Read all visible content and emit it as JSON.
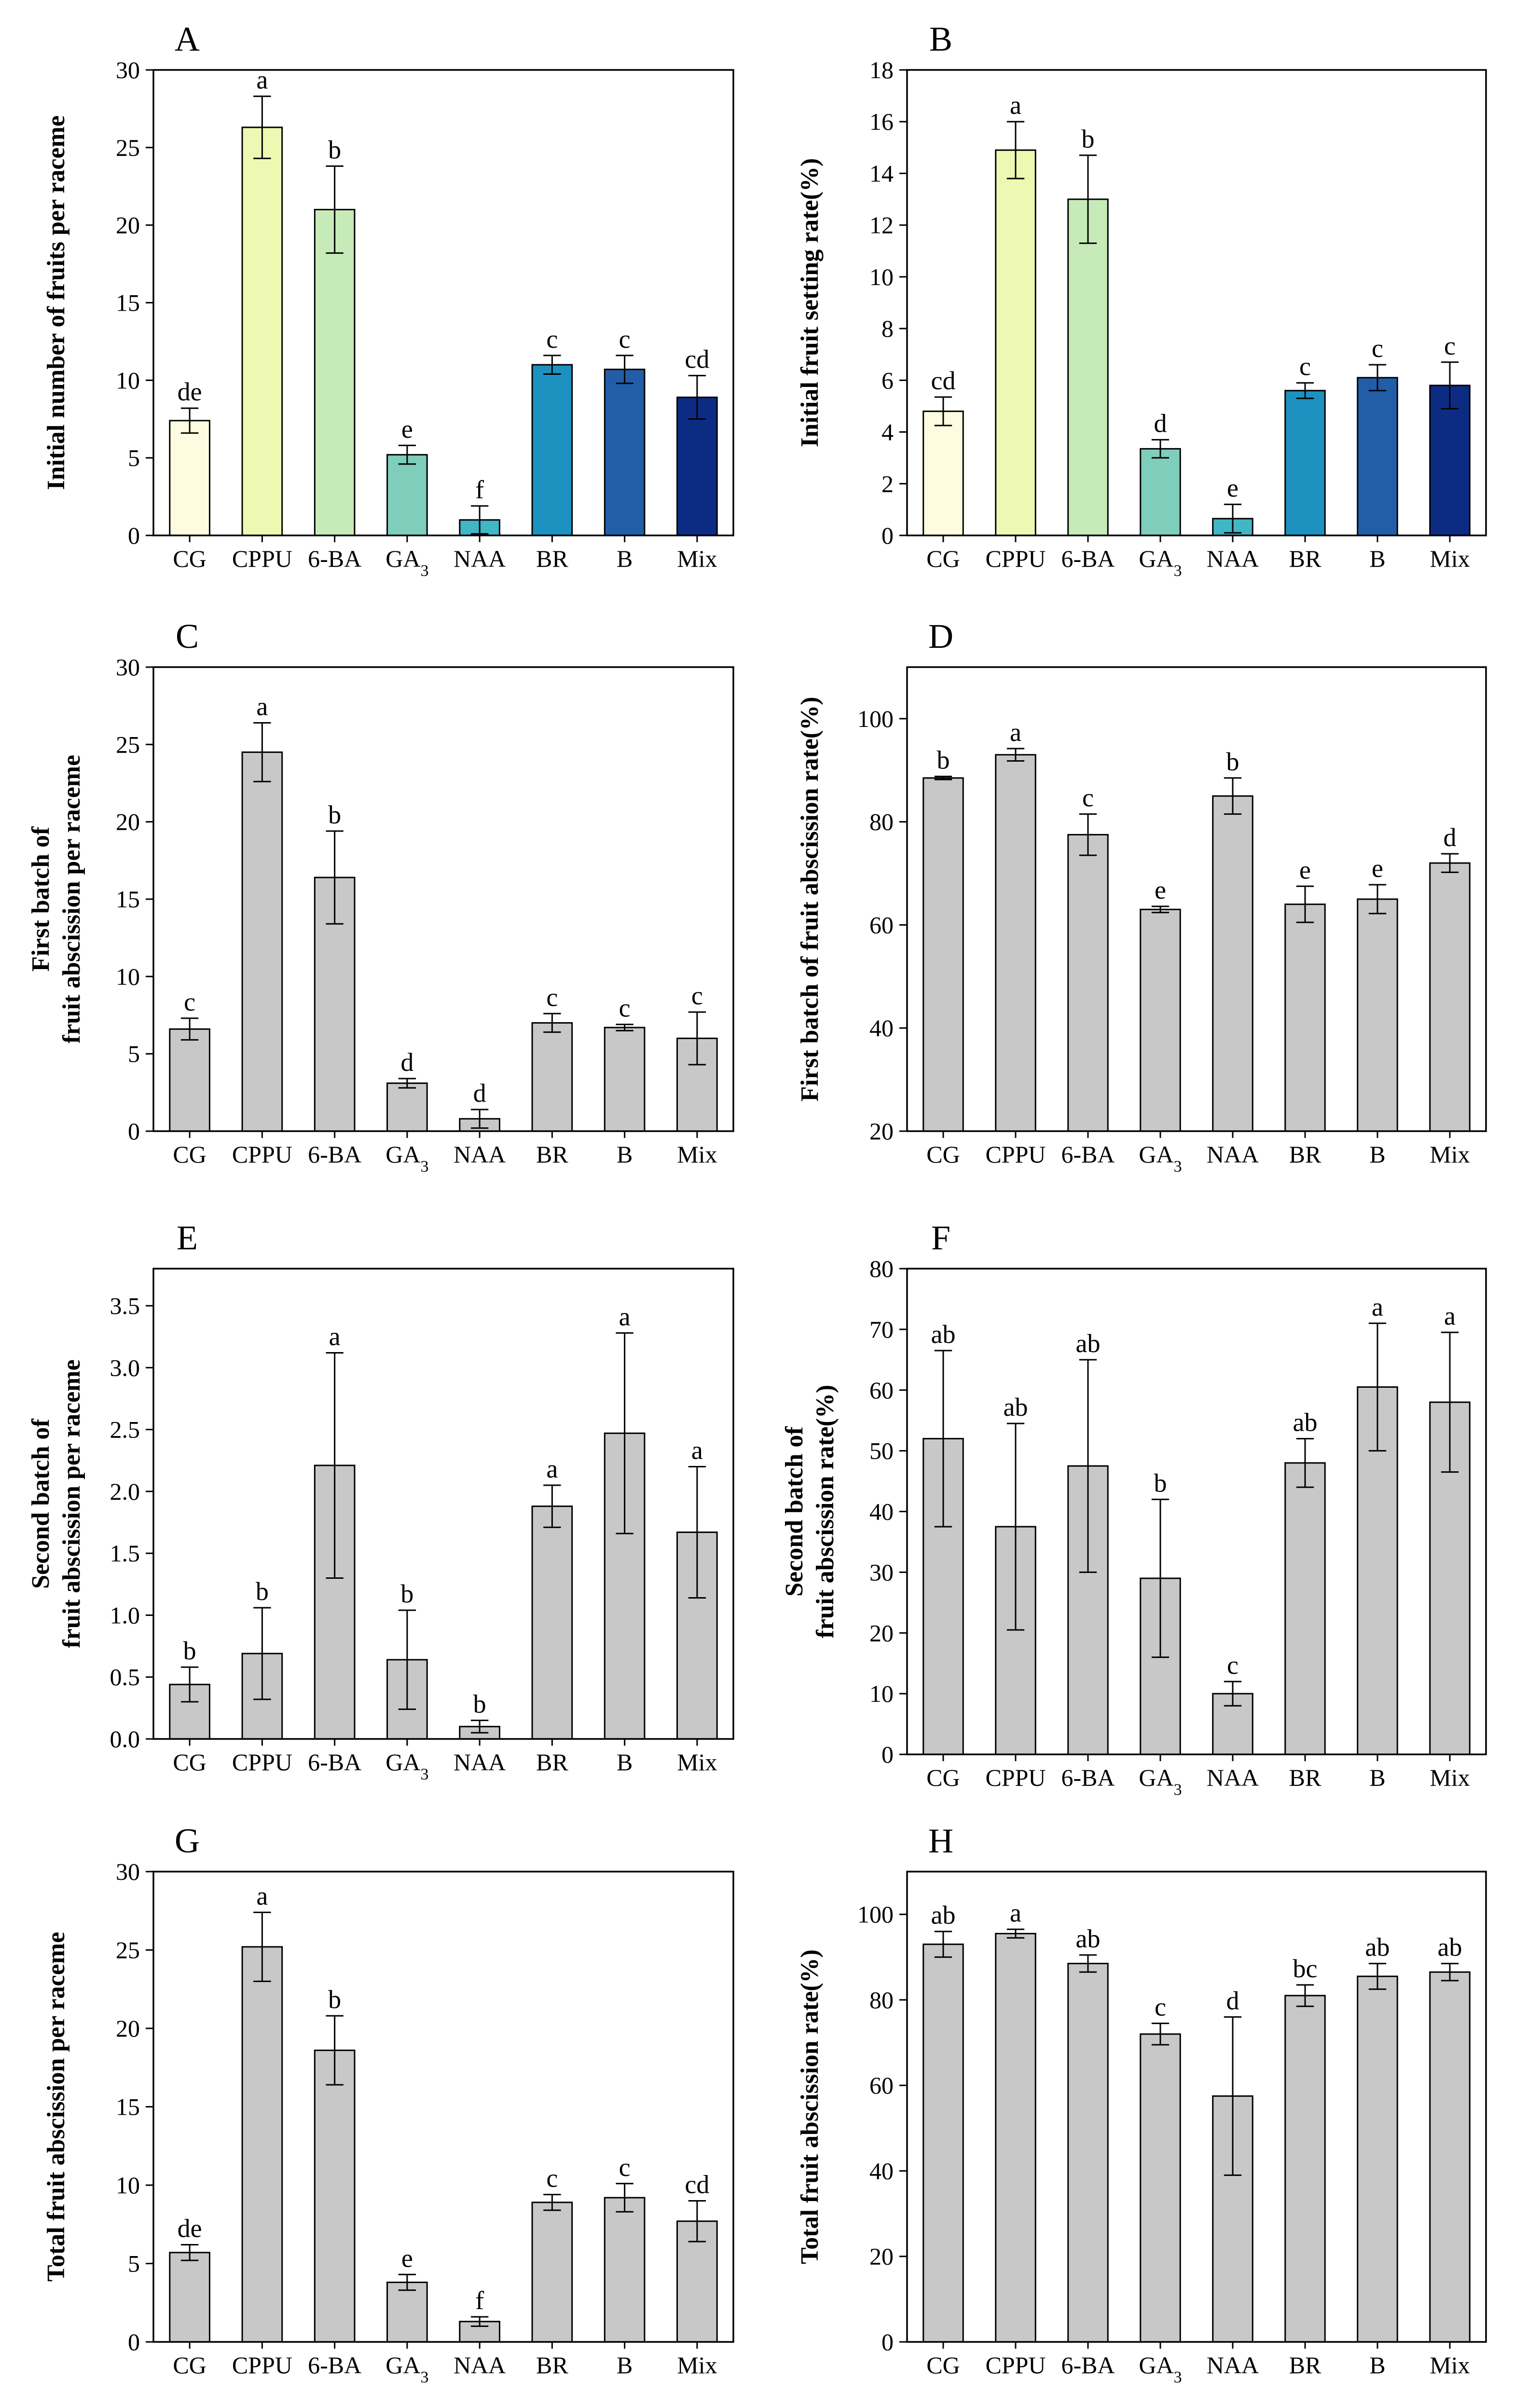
{
  "chart_data": [
    {
      "id": "A",
      "panel": "A",
      "type": "bar",
      "categories": [
        "CG",
        "CPPU",
        "6-BA",
        "GA3",
        "NAA",
        "BR",
        "B",
        "Mix"
      ],
      "values": [
        7.4,
        26.3,
        21.0,
        5.2,
        1.0,
        11.0,
        10.7,
        8.9
      ],
      "errors": [
        0.8,
        2.0,
        2.8,
        0.6,
        0.9,
        0.6,
        0.9,
        1.4
      ],
      "letters": [
        "de",
        "a",
        "b",
        "e",
        "f",
        "c",
        "c",
        "cd"
      ],
      "colors": [
        "#FDFCE0",
        "#EDF8B2",
        "#C7EAB9",
        "#7FCDBB",
        "#41B6C4",
        "#1D91C0",
        "#225EA8",
        "#0C2C84"
      ],
      "ylabel": [
        "Initial number of fruits per raceme"
      ],
      "ylim": [
        0,
        30
      ],
      "yticks": [
        0,
        5,
        10,
        15,
        20,
        25,
        30
      ],
      "decimals": 0
    },
    {
      "id": "B",
      "panel": "B",
      "type": "bar",
      "categories": [
        "CG",
        "CPPU",
        "6-BA",
        "GA3",
        "NAA",
        "BR",
        "B",
        "Mix"
      ],
      "values": [
        4.8,
        14.9,
        13.0,
        3.35,
        0.65,
        5.6,
        6.1,
        5.8
      ],
      "errors": [
        0.55,
        1.1,
        1.7,
        0.35,
        0.55,
        0.3,
        0.5,
        0.9
      ],
      "letters": [
        "cd",
        "a",
        "b",
        "d",
        "e",
        "c",
        "c",
        "c"
      ],
      "colors": [
        "#FDFCE0",
        "#EDF8B2",
        "#C7EAB9",
        "#7FCDBB",
        "#41B6C4",
        "#1D91C0",
        "#225EA8",
        "#0C2C84"
      ],
      "ylabel": [
        "Initial fruit setting rate(%)"
      ],
      "ylim": [
        0,
        18
      ],
      "yticks": [
        0,
        2,
        4,
        6,
        8,
        10,
        12,
        14,
        16,
        18
      ],
      "decimals": 0
    },
    {
      "id": "C",
      "panel": "C",
      "type": "bar",
      "categories": [
        "CG",
        "CPPU",
        "6-BA",
        "GA3",
        "NAA",
        "BR",
        "B",
        "Mix"
      ],
      "values": [
        6.6,
        24.5,
        16.4,
        3.1,
        0.8,
        7.0,
        6.7,
        6.0
      ],
      "errors": [
        0.7,
        1.9,
        3.0,
        0.3,
        0.6,
        0.6,
        0.2,
        1.7
      ],
      "letters": [
        "c",
        "a",
        "b",
        "d",
        "d",
        "c",
        "c",
        "c"
      ],
      "colors": [
        "#C8C8C8",
        "#C8C8C8",
        "#C8C8C8",
        "#C8C8C8",
        "#C8C8C8",
        "#C8C8C8",
        "#C8C8C8",
        "#C8C8C8"
      ],
      "ylabel": [
        "First batch of",
        "fruit abscission per raceme"
      ],
      "ylim": [
        0,
        30
      ],
      "yticks": [
        0,
        5,
        10,
        15,
        20,
        25,
        30
      ],
      "decimals": 0
    },
    {
      "id": "D",
      "panel": "D",
      "type": "bar",
      "categories": [
        "CG",
        "CPPU",
        "6-BA",
        "GA3",
        "NAA",
        "BR",
        "B",
        "Mix"
      ],
      "values": [
        88.5,
        93.0,
        77.5,
        63.0,
        85.0,
        64.0,
        65.0,
        72.0
      ],
      "errors": [
        0.3,
        1.2,
        4.0,
        0.6,
        3.5,
        3.5,
        2.8,
        1.8
      ],
      "letters": [
        "b",
        "a",
        "c",
        "e",
        "b",
        "e",
        "e",
        "d"
      ],
      "colors": [
        "#C8C8C8",
        "#C8C8C8",
        "#C8C8C8",
        "#C8C8C8",
        "#C8C8C8",
        "#C8C8C8",
        "#C8C8C8",
        "#C8C8C8"
      ],
      "ylabel": [
        "First batch of fruit abscission rate(%)"
      ],
      "ylim": [
        20,
        110
      ],
      "yticks": [
        20,
        40,
        60,
        80,
        100
      ],
      "decimals": 0
    },
    {
      "id": "E",
      "panel": "E",
      "type": "bar",
      "categories": [
        "CG",
        "CPPU",
        "6-BA",
        "GA3",
        "NAA",
        "BR",
        "B",
        "Mix"
      ],
      "values": [
        0.44,
        0.69,
        2.21,
        0.64,
        0.1,
        1.88,
        2.47,
        1.67
      ],
      "errors": [
        0.14,
        0.37,
        0.91,
        0.4,
        0.05,
        0.17,
        0.81,
        0.53
      ],
      "letters": [
        "b",
        "b",
        "a",
        "b",
        "b",
        "a",
        "a",
        "a"
      ],
      "colors": [
        "#C8C8C8",
        "#C8C8C8",
        "#C8C8C8",
        "#C8C8C8",
        "#C8C8C8",
        "#C8C8C8",
        "#C8C8C8",
        "#C8C8C8"
      ],
      "ylabel": [
        "Second batch of",
        "fruit abscission per raceme"
      ],
      "ylim": [
        0,
        3.8
      ],
      "yticks": [
        0,
        0.5,
        1,
        1.5,
        2,
        2.5,
        3,
        3.5
      ],
      "decimals": 1
    },
    {
      "id": "F",
      "panel": "F",
      "type": "bar",
      "categories": [
        "CG",
        "CPPU",
        "6-BA",
        "GA3",
        "NAA",
        "BR",
        "B",
        "Mix"
      ],
      "values": [
        52.0,
        37.5,
        47.5,
        29.0,
        10.0,
        48.0,
        60.5,
        58.0
      ],
      "errors": [
        14.5,
        17.0,
        17.5,
        13.0,
        2.0,
        4.0,
        10.5,
        11.5
      ],
      "letters": [
        "ab",
        "ab",
        "ab",
        "b",
        "c",
        "ab",
        "a",
        "a"
      ],
      "colors": [
        "#C8C8C8",
        "#C8C8C8",
        "#C8C8C8",
        "#C8C8C8",
        "#C8C8C8",
        "#C8C8C8",
        "#C8C8C8",
        "#C8C8C8"
      ],
      "ylabel": [
        "Second batch of",
        "fruit abscission rate(%)"
      ],
      "ylim": [
        0,
        80
      ],
      "yticks": [
        0,
        10,
        20,
        30,
        40,
        50,
        60,
        70,
        80
      ],
      "decimals": 0
    },
    {
      "id": "G",
      "panel": "G",
      "type": "bar",
      "categories": [
        "CG",
        "CPPU",
        "6-BA",
        "GA3",
        "NAA",
        "BR",
        "B",
        "Mix"
      ],
      "values": [
        5.7,
        25.2,
        18.6,
        3.8,
        1.3,
        8.9,
        9.2,
        7.7
      ],
      "errors": [
        0.5,
        2.2,
        2.2,
        0.5,
        0.3,
        0.5,
        0.9,
        1.3
      ],
      "letters": [
        "de",
        "a",
        "b",
        "e",
        "f",
        "c",
        "c",
        "cd"
      ],
      "colors": [
        "#C8C8C8",
        "#C8C8C8",
        "#C8C8C8",
        "#C8C8C8",
        "#C8C8C8",
        "#C8C8C8",
        "#C8C8C8",
        "#C8C8C8"
      ],
      "ylabel": [
        "Total fruit abscission per raceme"
      ],
      "ylim": [
        0,
        30
      ],
      "yticks": [
        0,
        5,
        10,
        15,
        20,
        25,
        30
      ],
      "decimals": 0
    },
    {
      "id": "H",
      "panel": "H",
      "type": "bar",
      "categories": [
        "CG",
        "CPPU",
        "6-BA",
        "GA3",
        "NAA",
        "BR",
        "B",
        "Mix"
      ],
      "values": [
        93.0,
        95.5,
        88.5,
        72.0,
        57.5,
        81.0,
        85.5,
        86.5
      ],
      "errors": [
        3.0,
        1.0,
        2.0,
        2.5,
        18.5,
        2.5,
        3.0,
        2.0
      ],
      "letters": [
        "ab",
        "a",
        "ab",
        "c",
        "d",
        "bc",
        "ab",
        "ab"
      ],
      "colors": [
        "#C8C8C8",
        "#C8C8C8",
        "#C8C8C8",
        "#C8C8C8",
        "#C8C8C8",
        "#C8C8C8",
        "#C8C8C8",
        "#C8C8C8"
      ],
      "ylabel": [
        "Total fruit abscission rate(%)"
      ],
      "ylim": [
        0,
        110
      ],
      "yticks": [
        0,
        20,
        40,
        60,
        80,
        100
      ],
      "decimals": 0
    }
  ]
}
